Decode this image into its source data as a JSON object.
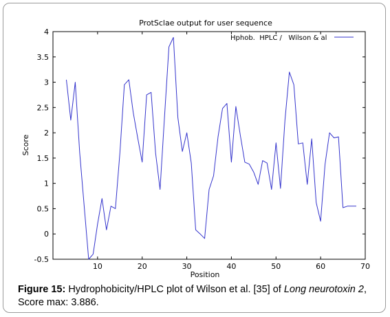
{
  "caption": {
    "label": "Figure 15:",
    "text_before": " Hydrophobicity/HPLC plot of Wilson et al. [35] of ",
    "italic": "Long neurotoxin 2",
    "text_after": ", Score max: 3.886."
  },
  "chart_data": {
    "type": "line",
    "title": "ProtSclae output for user sequence",
    "xlabel": "Position",
    "ylabel": "Score",
    "xlim": [
      0,
      70
    ],
    "ylim": [
      -0.5,
      4
    ],
    "x_ticks": [
      "10",
      "20",
      "30",
      "40",
      "50",
      "60",
      "70"
    ],
    "y_ticks": [
      "-0.5",
      "0",
      "0.5",
      "1",
      "1.5",
      "2",
      "2.5",
      "3",
      "3.5",
      "4"
    ],
    "grid": false,
    "legend_position": "top-right",
    "line_color": "#3333cc",
    "series": [
      {
        "name": "Hphob.  HPLC /   Wilson & al",
        "x": [
          3,
          4,
          5,
          6,
          7,
          8,
          9,
          10,
          11,
          12,
          13,
          14,
          15,
          16,
          17,
          18,
          19,
          20,
          21,
          22,
          23,
          24,
          25,
          26,
          27,
          28,
          29,
          30,
          31,
          32,
          33,
          34,
          35,
          36,
          37,
          38,
          39,
          40,
          41,
          42,
          43,
          44,
          45,
          46,
          47,
          48,
          49,
          50,
          51,
          52,
          53,
          54,
          55,
          56,
          57,
          58,
          59,
          60,
          61,
          62,
          63,
          64,
          65,
          66,
          67,
          68
        ],
        "y": [
          3.05,
          2.25,
          3.0,
          1.6,
          0.55,
          -0.5,
          -0.4,
          0.2,
          0.7,
          0.08,
          0.55,
          0.5,
          1.6,
          2.95,
          3.05,
          2.4,
          1.9,
          1.42,
          2.75,
          2.8,
          1.6,
          0.88,
          2.3,
          3.7,
          3.886,
          2.3,
          1.63,
          2.0,
          1.4,
          0.08,
          0.0,
          -0.09,
          0.88,
          1.15,
          1.92,
          2.48,
          2.58,
          1.42,
          2.52,
          1.95,
          1.42,
          1.38,
          1.22,
          0.98,
          1.45,
          1.4,
          0.88,
          1.8,
          0.9,
          2.25,
          3.2,
          2.95,
          1.78,
          1.8,
          0.98,
          1.88,
          0.62,
          0.25,
          1.38,
          2.0,
          1.9,
          1.92,
          0.52,
          0.55,
          0.55,
          0.55
        ]
      }
    ]
  }
}
